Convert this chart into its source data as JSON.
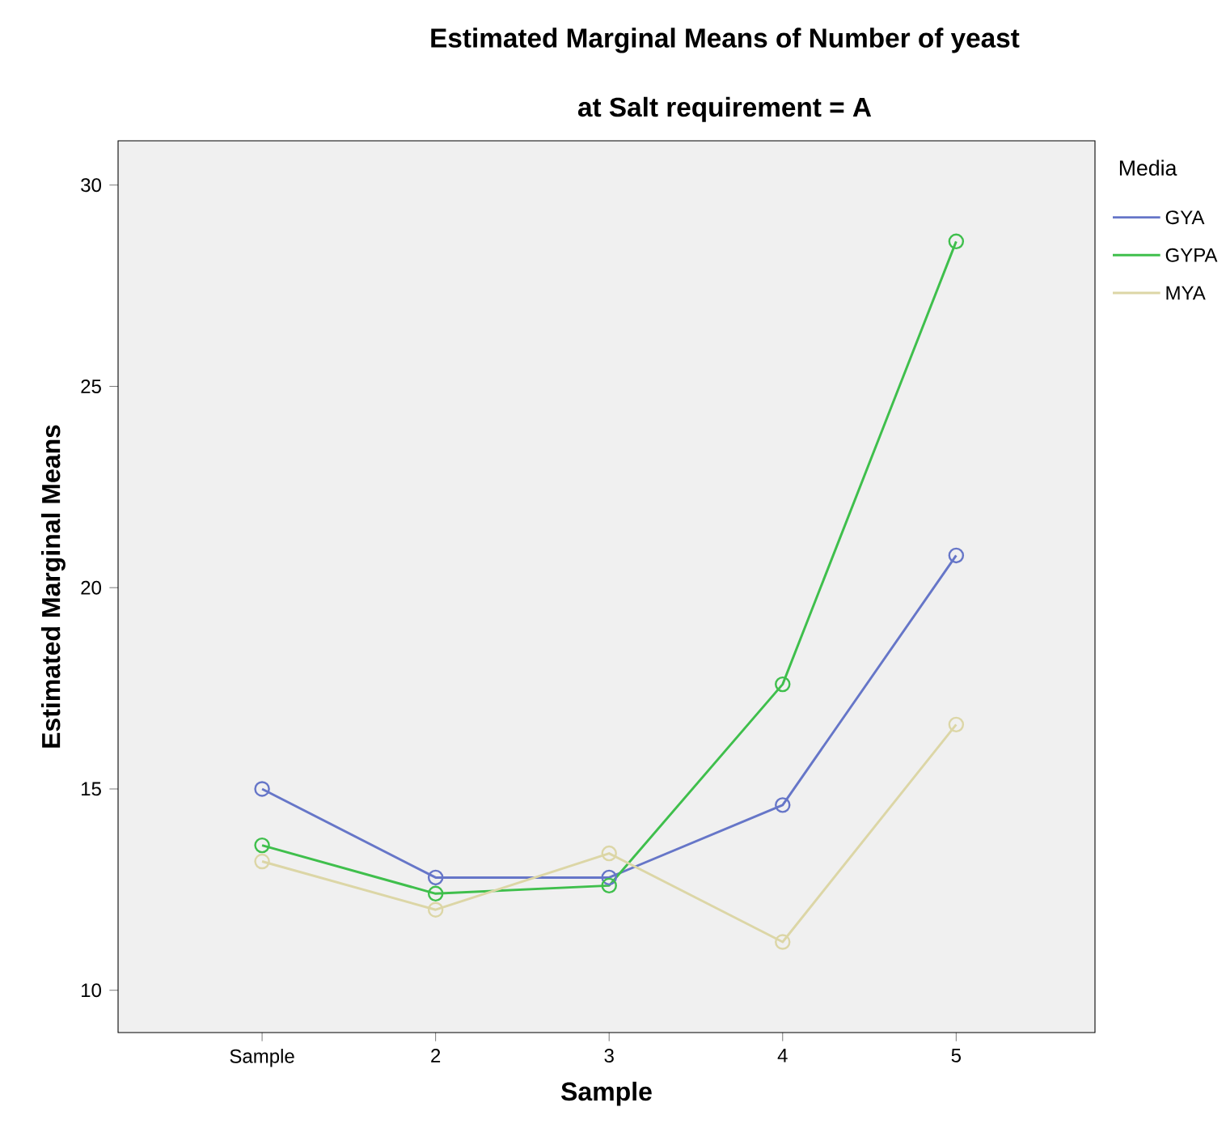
{
  "chart_data": {
    "type": "line",
    "title": "Estimated Marginal Means of Number of yeast",
    "subtitle": "at Salt requirement = A",
    "xlabel": "Sample",
    "ylabel": "Estimated Marginal Means",
    "legend_title": "Media",
    "categories": [
      "Sample",
      "2",
      "3",
      "4",
      "5"
    ],
    "series": [
      {
        "name": "GYA",
        "color": "#6676c8",
        "values": [
          15.0,
          12.8,
          12.8,
          14.6,
          20.8
        ]
      },
      {
        "name": "GYPA",
        "color": "#3fbf4c",
        "values": [
          13.6,
          12.4,
          12.6,
          17.6,
          28.6
        ]
      },
      {
        "name": "MYA",
        "color": "#dcd6a6",
        "values": [
          13.2,
          12.0,
          13.4,
          11.2,
          16.6
        ]
      }
    ],
    "ylim": [
      8.95,
      31.1
    ],
    "yticks": [
      10,
      15,
      20,
      25,
      30
    ],
    "legend": "right",
    "marker": "circle",
    "line_style": "solid",
    "grid": false
  }
}
